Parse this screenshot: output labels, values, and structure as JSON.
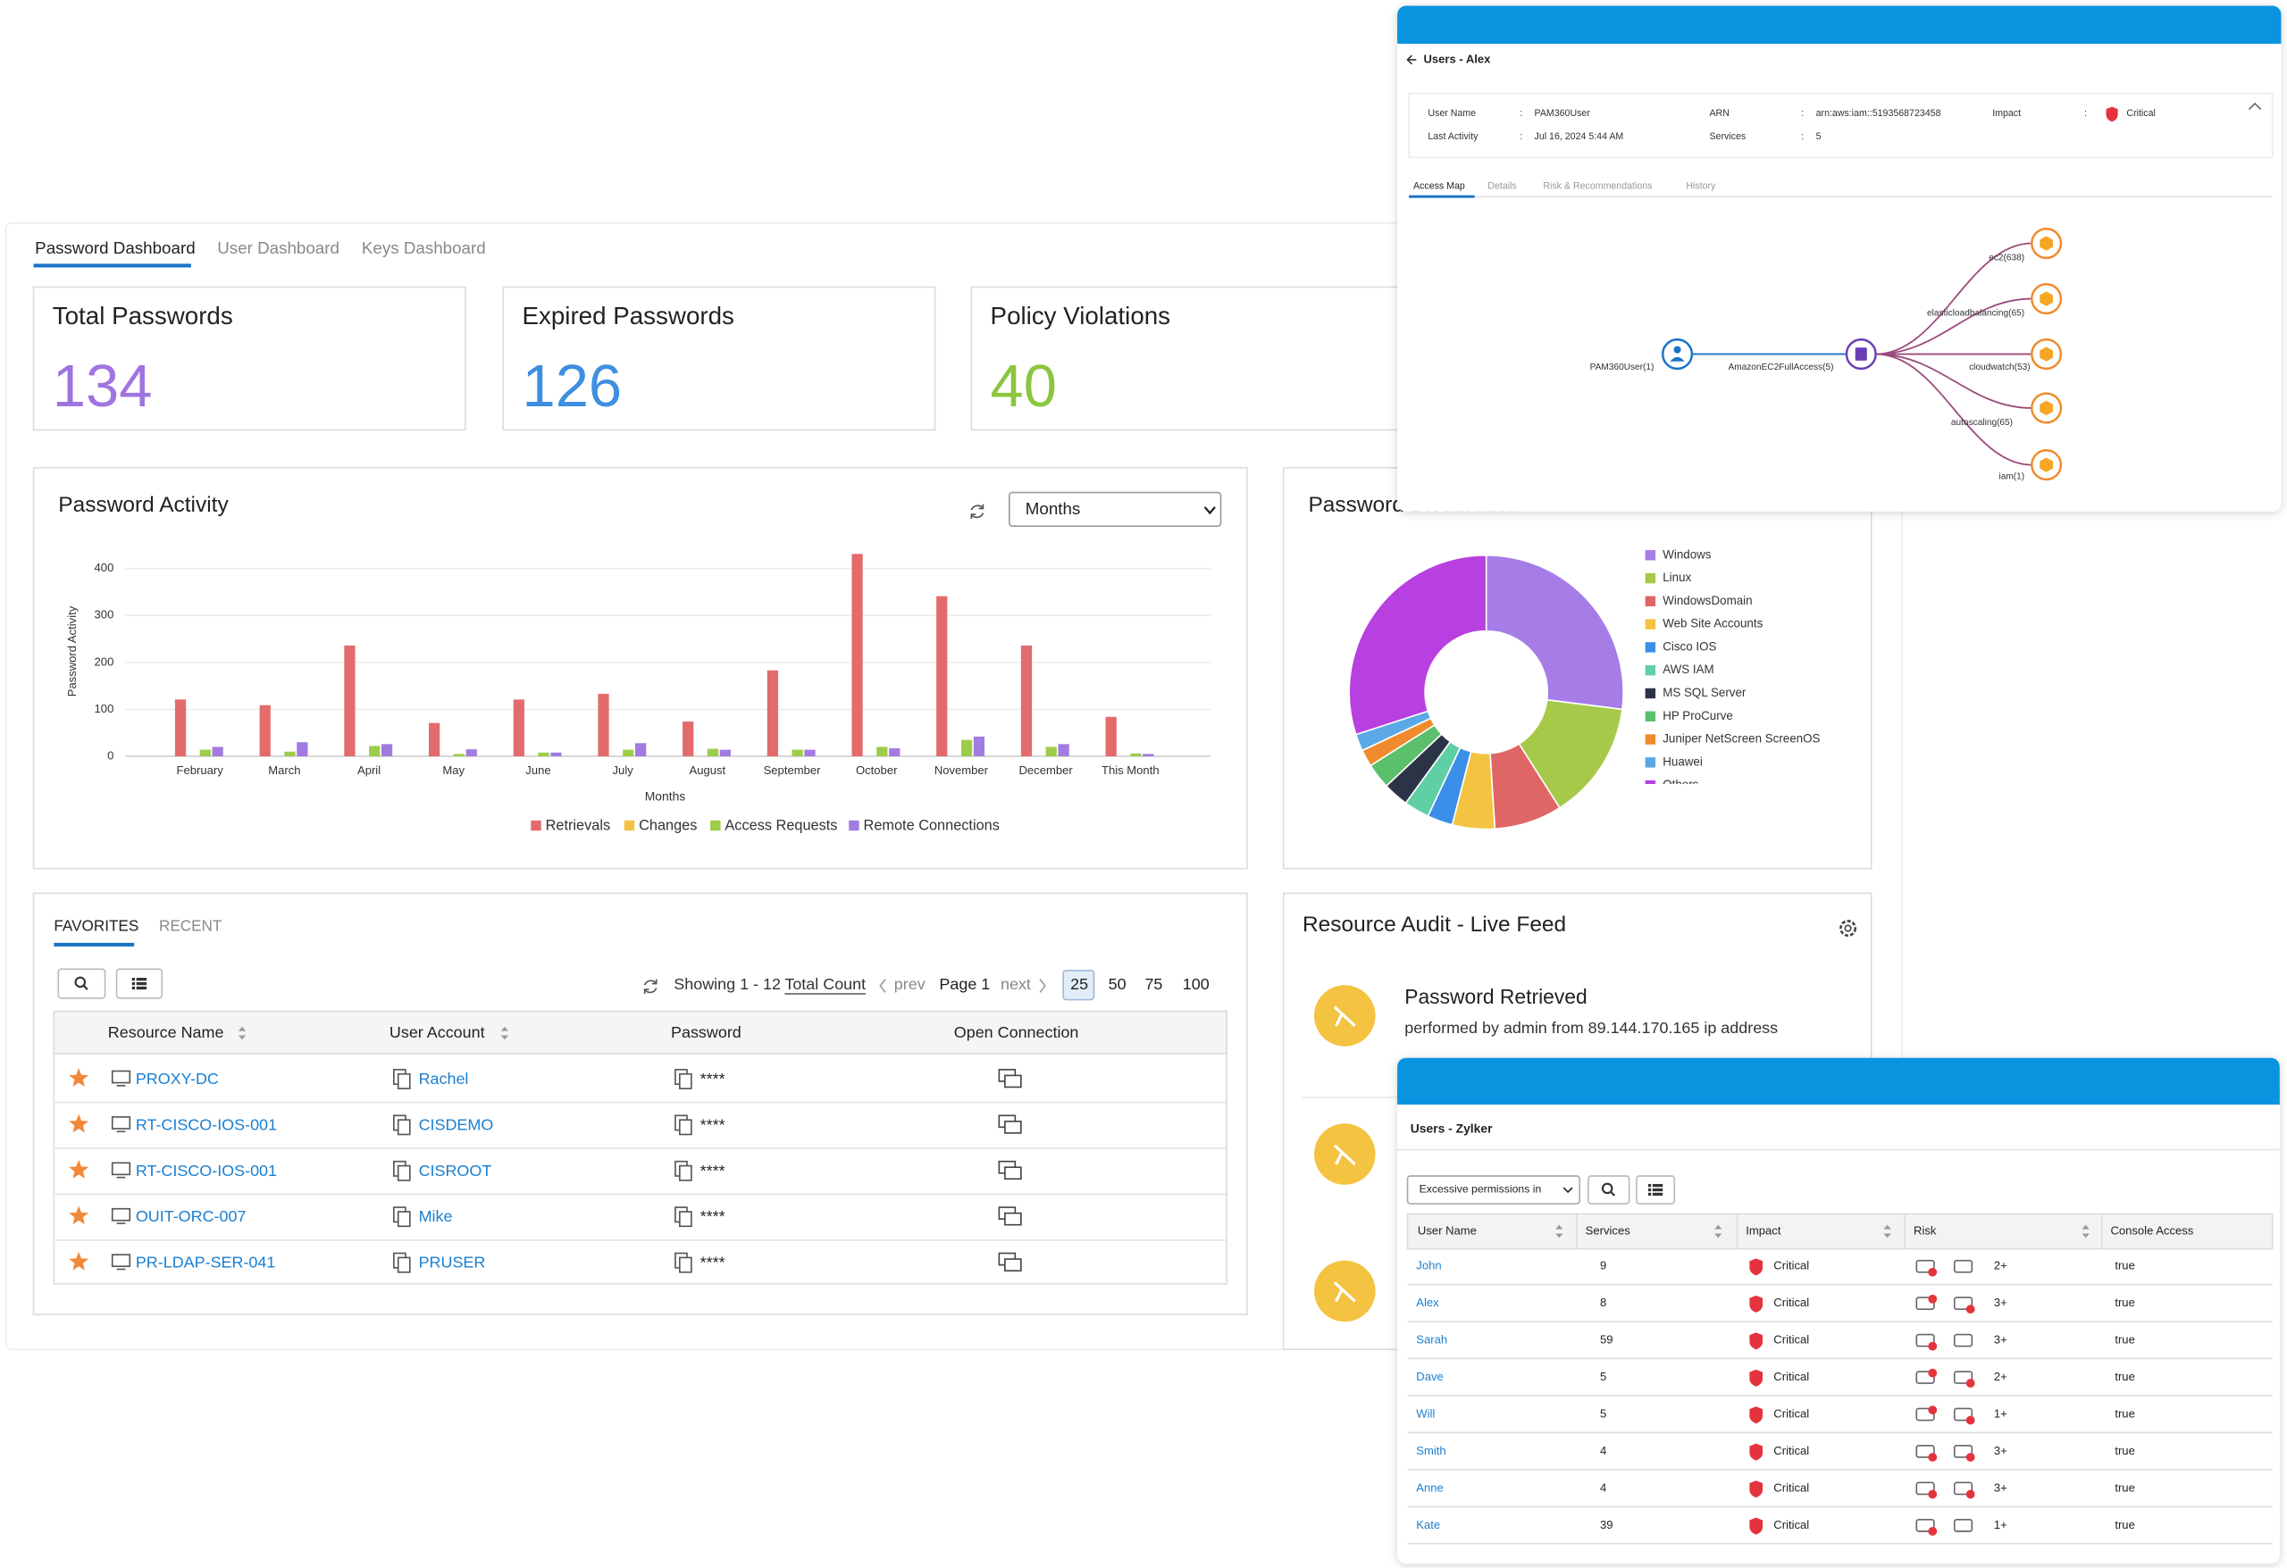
{
  "dashboard_tabs": [
    "Password Dashboard",
    "User Dashboard",
    "Keys Dashboard"
  ],
  "cards": [
    {
      "title": "Total Passwords",
      "value": 134,
      "color": "#a074e0"
    },
    {
      "title": "Expired Passwords",
      "value": 126,
      "color": "#3f8fe0"
    },
    {
      "title": "Policy Violations",
      "value": 40,
      "color": "#8cc63f"
    }
  ],
  "chart_data": [
    {
      "type": "bar",
      "title": "Password Activity",
      "period_select": "Months",
      "x_label": "Months",
      "y_label": "Password Activity",
      "categories": [
        "February",
        "March",
        "April",
        "May",
        "June",
        "July",
        "August",
        "September",
        "October",
        "November",
        "December",
        "This Month"
      ],
      "series": [
        {
          "name": "Retrievals",
          "color": "#e36b6b",
          "values": [
            121,
            109,
            236,
            71,
            121,
            133,
            74,
            183,
            431,
            341,
            236,
            84
          ]
        },
        {
          "name": "Changes",
          "color": "#f5c342",
          "values": [
            0,
            0,
            0,
            0,
            0,
            0,
            0,
            0,
            0,
            0,
            0,
            0
          ]
        },
        {
          "name": "Access Requests",
          "color": "#9ccc4a",
          "values": [
            14,
            10,
            22,
            5,
            8,
            14,
            16,
            14,
            20,
            35,
            20,
            6
          ]
        },
        {
          "name": "Remote Connections",
          "color": "#a27be0",
          "values": [
            20,
            30,
            26,
            15,
            8,
            28,
            14,
            14,
            17,
            42,
            26,
            5
          ]
        }
      ],
      "ylim": [
        0,
        450
      ],
      "yticks": [
        0,
        100,
        200,
        300,
        400
      ],
      "grid": true
    },
    {
      "type": "donut",
      "title": "Password Distribution",
      "categories": [
        "Windows",
        "Linux",
        "WindowsDomain",
        "Web Site Accounts",
        "Cisco IOS",
        "AWS IAM",
        "MS SQL Server",
        "HP ProCurve",
        "Juniper NetScreen ScreenOS",
        "Huawei",
        "Others"
      ],
      "values": [
        27,
        14,
        8,
        5,
        3,
        3,
        3,
        3,
        2,
        2,
        30
      ],
      "colors": [
        "#a67ce6",
        "#a6c94a",
        "#e06666",
        "#f5c342",
        "#3b8fe8",
        "#5fcfa5",
        "#2b3447",
        "#5ac06b",
        "#f08a2c",
        "#5aa9e6",
        "#b83fe0"
      ]
    }
  ],
  "favorites": {
    "tabs": [
      "FAVORITES",
      "RECENT"
    ],
    "showing": "Showing 1 - 12",
    "total_count": "Total Count",
    "prev": "prev",
    "page": "Page 1",
    "next": "next",
    "page_sizes": [
      25,
      50,
      75,
      100
    ],
    "columns": [
      "Resource Name",
      "User Account",
      "Password",
      "Open Connection"
    ],
    "rows": [
      {
        "resource": "PROXY-DC",
        "account": "Rachel",
        "password": "****"
      },
      {
        "resource": "RT-CISCO-IOS-001",
        "account": "CISDEMO",
        "password": "****"
      },
      {
        "resource": "RT-CISCO-IOS-001",
        "account": "CISROOT",
        "password": "****"
      },
      {
        "resource": "OUIT-ORC-007",
        "account": "Mike",
        "password": "****"
      },
      {
        "resource": "PR-LDAP-SER-041",
        "account": "PRUSER",
        "password": "****"
      }
    ]
  },
  "resource_audit": {
    "title": "Resource Audit - Live Feed",
    "event": "Password Retrieved",
    "detail": "performed by admin from 89.144.170.165 ip address"
  },
  "access_map": {
    "title": "Users - Alex",
    "separator": ":",
    "fields": [
      {
        "label": "User Name",
        "value": "PAM360User"
      },
      {
        "label": "ARN",
        "value": "arn:aws:iam::5193568723458"
      },
      {
        "label": "Impact",
        "value": "Critical"
      },
      {
        "label": "Last Activity",
        "value": "Jul 16, 2024  5:44 AM"
      },
      {
        "label": "Services",
        "value": 5
      }
    ],
    "tabs": [
      "Access Map",
      "Details",
      "Risk & Recommendations",
      "History"
    ],
    "user_node": "PAM360User(1)",
    "policy_node": "AmazonEC2FullAccess(5)",
    "services": [
      "ec2(638)",
      "elasticloadbalancing(65)",
      "cloudwatch(53)",
      "autoscaling(65)",
      "iam(1)"
    ]
  },
  "zylker": {
    "title": "Users - Zylker",
    "filter": "Excessive permissions in",
    "columns": [
      "User Name",
      "Services",
      "Impact",
      "Risk",
      "Console Access"
    ],
    "rows": [
      {
        "user": "John",
        "services": 9,
        "impact": "Critical",
        "risk": "2+",
        "console": "true"
      },
      {
        "user": "Alex",
        "services": 8,
        "impact": "Critical",
        "risk": "3+",
        "console": "true"
      },
      {
        "user": "Sarah",
        "services": 59,
        "impact": "Critical",
        "risk": "3+",
        "console": "true"
      },
      {
        "user": "Dave",
        "services": 5,
        "impact": "Critical",
        "risk": "2+",
        "console": "true"
      },
      {
        "user": "Will",
        "services": 5,
        "impact": "Critical",
        "risk": "1+",
        "console": "true"
      },
      {
        "user": "Smith",
        "services": 4,
        "impact": "Critical",
        "risk": "3+",
        "console": "true"
      },
      {
        "user": "Anne",
        "services": 4,
        "impact": "Critical",
        "risk": "3+",
        "console": "true"
      },
      {
        "user": "Kate",
        "services": 39,
        "impact": "Critical",
        "risk": "1+",
        "console": "true"
      }
    ]
  }
}
